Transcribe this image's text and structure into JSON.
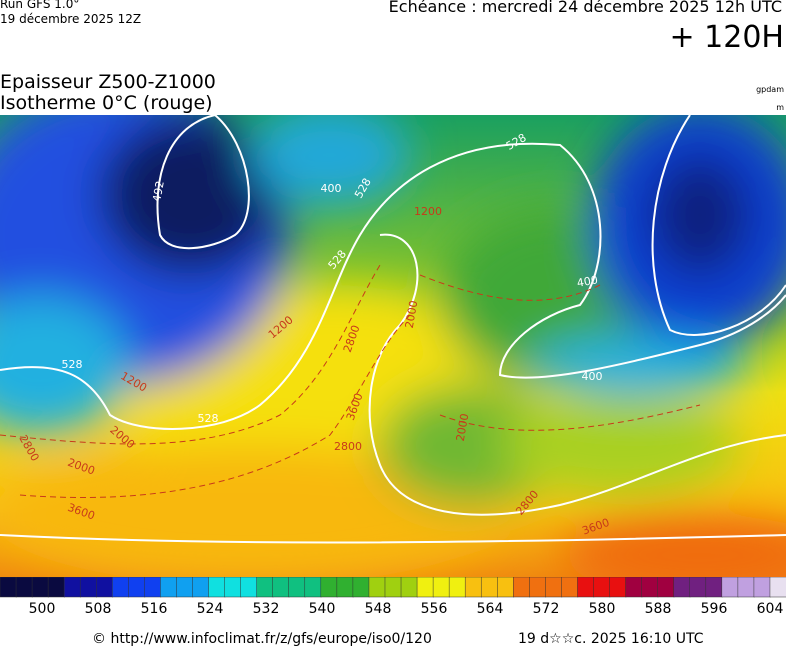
{
  "header": {
    "run": "Run GFS 1.0°",
    "run_date": "19 décembre 2025 12Z",
    "valid": "Echéance : mercredi 24 décembre 2025 12h UTC",
    "lead": "+ 120H"
  },
  "legend": {
    "title": "Epaisseur Z500-Z1000",
    "subtitle": "Isotherme 0°C (rouge)",
    "unit_top": "gpdam",
    "unit_bottom": "m"
  },
  "map": {
    "contour_labels": [
      "492",
      "528",
      "528",
      "528",
      "528",
      "528",
      "400",
      "400",
      "400",
      "1200",
      "1200",
      "1200",
      "2000",
      "2000",
      "2000",
      "2000",
      "2800",
      "2800",
      "2800",
      "2800",
      "3600",
      "3600",
      "3600"
    ]
  },
  "colorbar": {
    "labels": [
      500,
      508,
      516,
      524,
      532,
      540,
      548,
      556,
      564,
      572,
      580,
      588,
      596,
      604
    ]
  },
  "footer": {
    "source": "© http://www.infoclimat.fr/z/gfs/europe/iso0/120",
    "stamp": "19 d☆☆c. 2025 16:10 UTC"
  }
}
